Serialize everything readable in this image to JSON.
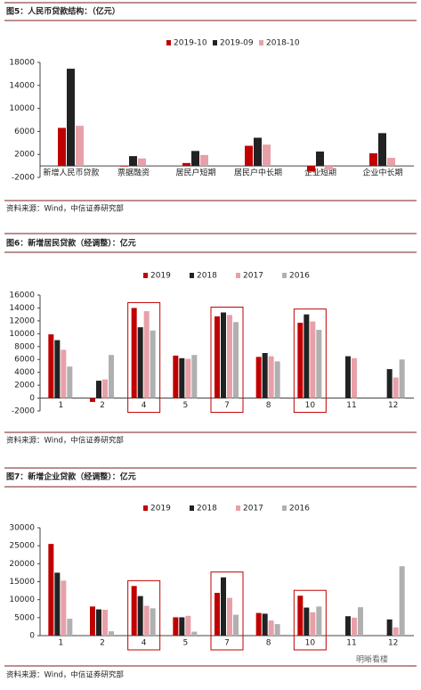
{
  "chart_data": [
    {
      "type": "bar",
      "title": "图5：人民币贷款结构：（亿元）",
      "source": "资料来源：Wind，中信证券研究部",
      "categories": [
        "新增人民币贷款",
        "票据融资",
        "居民户短期",
        "居民户中长期",
        "企业短期",
        "企业中长期"
      ],
      "series": [
        {
          "name": "2019-10",
          "color": "#c00000",
          "values": [
            6613,
            -100,
            500,
            3500,
            -1000,
            2200
          ]
        },
        {
          "name": "2019-09",
          "color": "#222222",
          "values": [
            16900,
            1700,
            2600,
            4900,
            2500,
            5700
          ]
        },
        {
          "name": "2018-10",
          "color": "#e8a0a8",
          "values": [
            6970,
            1300,
            1900,
            3700,
            -700,
            1400
          ]
        }
      ],
      "ylim": [
        -2000,
        18000
      ],
      "yticks": [
        -2000,
        2000,
        6000,
        10000,
        14000,
        18000
      ],
      "highlight": []
    },
    {
      "type": "bar",
      "title": "图6：新增居民贷款（经调整）：亿元",
      "source": "资料来源：Wind，中信证券研究部",
      "categories": [
        "1",
        "2",
        "4",
        "5",
        "7",
        "8",
        "10",
        "11",
        "12"
      ],
      "series": [
        {
          "name": "2019",
          "color": "#c00000",
          "values": [
            9900,
            -600,
            14000,
            6600,
            12700,
            6400,
            11700,
            null,
            null
          ]
        },
        {
          "name": "2018",
          "color": "#222222",
          "values": [
            9000,
            2700,
            11000,
            6200,
            13300,
            7000,
            13000,
            6500,
            4500
          ]
        },
        {
          "name": "2017",
          "color": "#e8a0a8",
          "values": [
            7500,
            2900,
            13500,
            6100,
            12900,
            6500,
            11900,
            6200,
            3200
          ]
        },
        {
          "name": "2016",
          "color": "#b0b0b0",
          "values": [
            4900,
            6700,
            10500,
            6700,
            11800,
            5700,
            10600,
            null,
            6000
          ]
        }
      ],
      "ylim": [
        -2000,
        16000
      ],
      "yticks": [
        -2000,
        0,
        2000,
        4000,
        6000,
        8000,
        10000,
        12000,
        14000,
        16000
      ],
      "highlight": [
        2,
        4,
        6
      ]
    },
    {
      "type": "bar",
      "title": "图7：新增企业贷款（经调整）：亿元",
      "source": "资料来源：Wind，中信证券研究部",
      "categories": [
        "1",
        "2",
        "4",
        "5",
        "7",
        "8",
        "10",
        "11",
        "12"
      ],
      "series": [
        {
          "name": "2019",
          "color": "#c00000",
          "values": [
            25500,
            8100,
            13800,
            5100,
            11900,
            6300,
            11100,
            null,
            null
          ]
        },
        {
          "name": "2018",
          "color": "#222222",
          "values": [
            17500,
            7300,
            11000,
            5100,
            16200,
            6100,
            7800,
            5400,
            4500
          ]
        },
        {
          "name": "2017",
          "color": "#e8a0a8",
          "values": [
            15300,
            7200,
            8300,
            5500,
            10500,
            4200,
            6500,
            5000,
            2300
          ]
        },
        {
          "name": "2016",
          "color": "#b0b0b0",
          "values": [
            4700,
            1200,
            7600,
            1100,
            5800,
            3200,
            8100,
            7900,
            19300
          ]
        }
      ],
      "ylim": [
        0,
        30000
      ],
      "yticks": [
        0,
        5000,
        10000,
        15000,
        20000,
        25000,
        30000
      ],
      "highlight": [
        2,
        4,
        6
      ]
    }
  ],
  "watermark": "明晰看楼"
}
